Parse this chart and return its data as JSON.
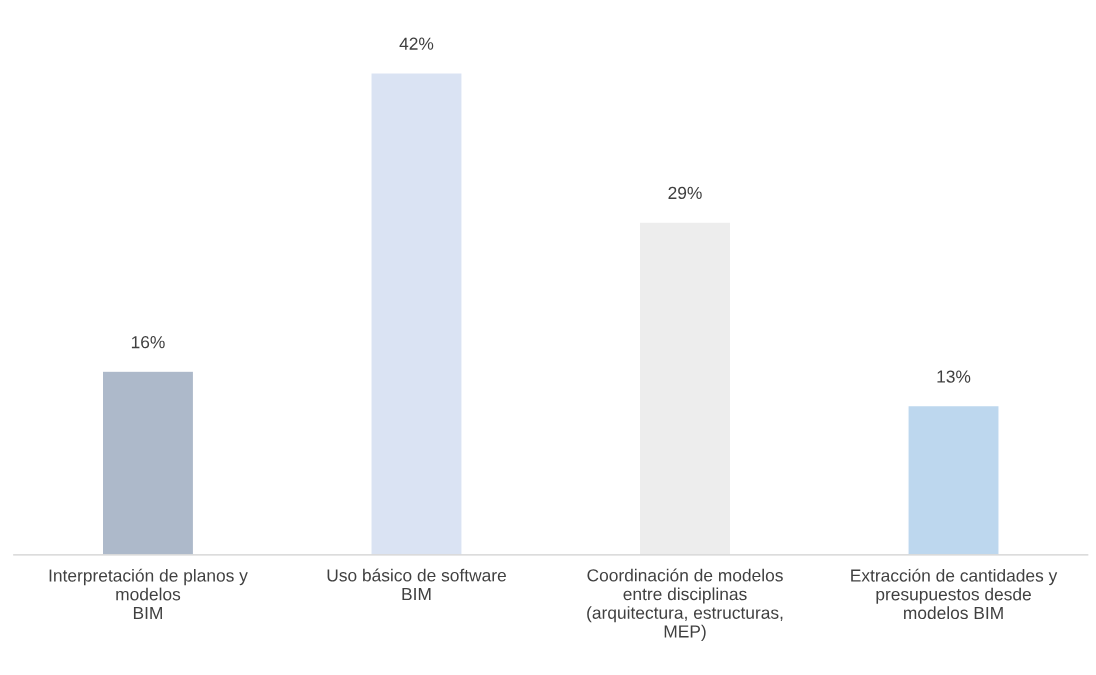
{
  "chart_data": {
    "type": "bar",
    "categories": [
      "Interpretación de planos y\nmodelos\nBIM",
      "Uso básico de software\nBIM",
      "Coordinación de modelos\nentre disciplinas\n(arquitectura, estructuras,\nMEP)",
      "Extracción de cantidades y\npresupuestos desde\nmodelos BIM"
    ],
    "values": [
      16,
      42,
      29,
      13
    ],
    "colors": [
      "#adb9ca",
      "#dae3f3",
      "#ededed",
      "#bdd7ee"
    ],
    "value_labels": [
      "16%",
      "42%",
      "29%",
      "13%"
    ],
    "grid": false,
    "legend": false
  }
}
